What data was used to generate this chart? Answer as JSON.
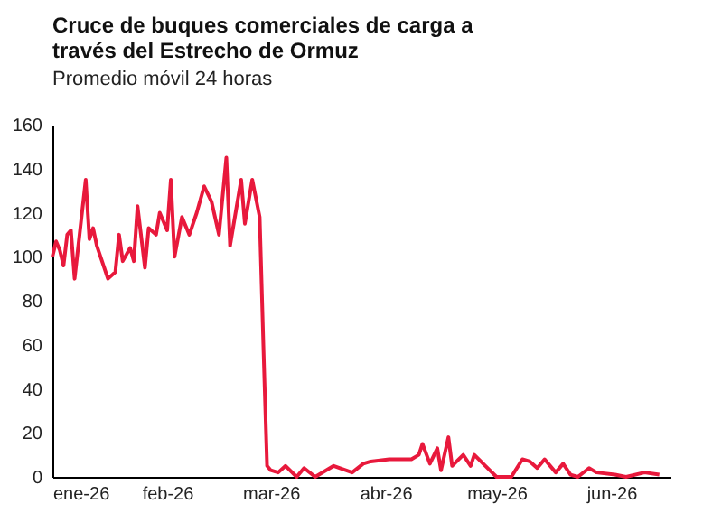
{
  "chart_data": {
    "type": "line",
    "title": [
      "Cruce de buques comerciales de carga a",
      "través del Estrecho de Ormuz"
    ],
    "subtitle": "Promedio móvil 24 horas",
    "x": [
      "2026-01-01",
      "2026-01-02",
      "2026-01-03",
      "2026-01-04",
      "2026-01-05",
      "2026-01-06",
      "2026-01-07",
      "2026-01-08",
      "2026-01-10",
      "2026-01-11",
      "2026-01-12",
      "2026-01-13",
      "2026-01-15",
      "2026-01-16",
      "2026-01-18",
      "2026-01-19",
      "2026-01-20",
      "2026-01-22",
      "2026-01-23",
      "2026-01-24",
      "2026-01-26",
      "2026-01-27",
      "2026-01-29",
      "2026-01-30",
      "2026-02-01",
      "2026-02-02",
      "2026-02-03",
      "2026-02-05",
      "2026-02-07",
      "2026-02-09",
      "2026-02-11",
      "2026-02-13",
      "2026-02-15",
      "2026-02-17",
      "2026-02-18",
      "2026-02-21",
      "2026-02-22",
      "2026-02-24",
      "2026-02-26",
      "2026-02-27",
      "2026-02-28",
      "2026-03-01",
      "2026-03-03",
      "2026-03-05",
      "2026-03-08",
      "2026-03-10",
      "2026-03-13",
      "2026-03-18",
      "2026-03-23",
      "2026-03-26",
      "2026-03-28",
      "2026-04-02",
      "2026-04-08",
      "2026-04-10",
      "2026-04-11",
      "2026-04-13",
      "2026-04-15",
      "2026-04-16",
      "2026-04-18",
      "2026-04-19",
      "2026-04-22",
      "2026-04-24",
      "2026-04-25",
      "2026-04-28",
      "2026-05-01",
      "2026-05-05",
      "2026-05-08",
      "2026-05-10",
      "2026-05-12",
      "2026-05-14",
      "2026-05-17",
      "2026-05-19",
      "2026-05-21",
      "2026-05-23",
      "2026-05-26",
      "2026-05-28",
      "2026-06-02",
      "2026-06-05",
      "2026-06-10",
      "2026-06-14"
    ],
    "series": [
      {
        "color": "#e8193c",
        "values": [
          100,
          107,
          103,
          96,
          110,
          112,
          90,
          105,
          135,
          108,
          113,
          105,
          95,
          90,
          93,
          110,
          98,
          104,
          98,
          123,
          95,
          113,
          110,
          120,
          112,
          135,
          100,
          118,
          110,
          120,
          132,
          125,
          110,
          145,
          105,
          135,
          115,
          135,
          118,
          60,
          5,
          3,
          2,
          5,
          0,
          4,
          0,
          5,
          2,
          6,
          7,
          8,
          8,
          10,
          15,
          6,
          13,
          3,
          18,
          5,
          10,
          5,
          10,
          5,
          0,
          0,
          8,
          7,
          4,
          8,
          2,
          6,
          1,
          0,
          4,
          2,
          1,
          0,
          2,
          1
        ]
      }
    ],
    "xlim": [
      "2026-01-01",
      "2026-06-17"
    ],
    "xticks": [
      {
        "value": "2026-01-01",
        "label": "ene-26"
      },
      {
        "value": "2026-02-01",
        "label": "feb-26"
      },
      {
        "value": "2026-03-01",
        "label": "mar-26"
      },
      {
        "value": "2026-04-01",
        "label": "abr-26"
      },
      {
        "value": "2026-05-01",
        "label": "may-26"
      },
      {
        "value": "2026-06-01",
        "label": "jun-26"
      }
    ],
    "ylim": [
      0,
      160
    ],
    "yticks": [
      0,
      20,
      40,
      60,
      80,
      100,
      120,
      140,
      160
    ],
    "grid": false,
    "line_style": "solid",
    "marker": "none"
  }
}
